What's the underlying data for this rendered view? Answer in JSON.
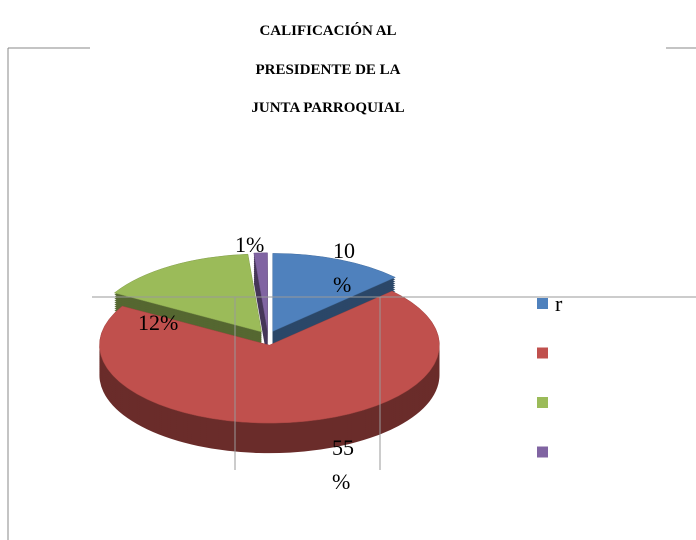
{
  "chart_data": {
    "type": "pie",
    "title": "CALIFICACIÓN AL PRESIDENTE DE LA JUNTA PARROQUIAL",
    "categories": [
      "r",
      null,
      null,
      null
    ],
    "values": [
      10,
      55,
      12,
      1
    ],
    "value_labels": [
      "10%",
      "55%",
      "12%",
      "1%"
    ],
    "colors": [
      "#4f81bd",
      "#c0504d",
      "#9bbb59",
      "#8064a2"
    ],
    "legend": "right"
  }
}
